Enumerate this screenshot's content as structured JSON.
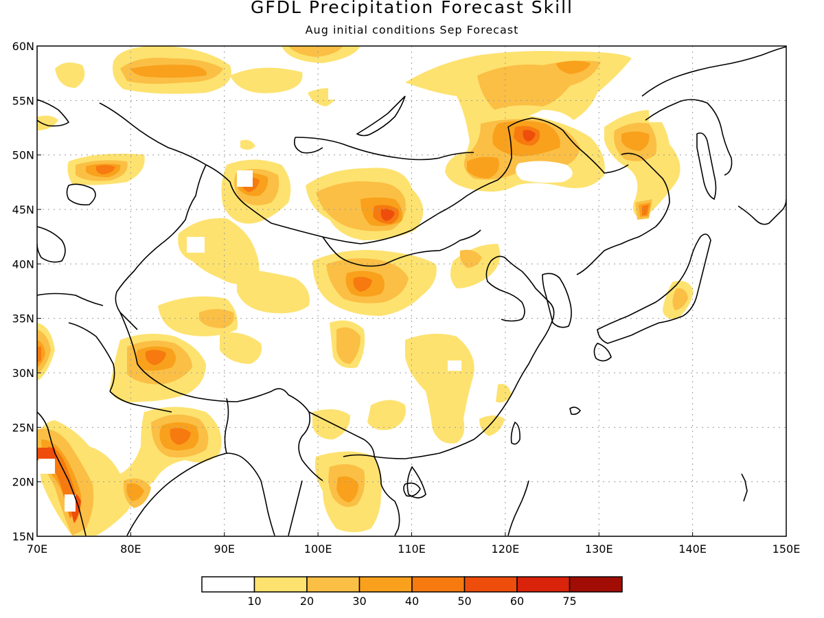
{
  "title": "GFDL Precipitation Forecast Skill",
  "subtitle": "Aug initial conditions  Sep Forecast",
  "map": {
    "lon_range": [
      70,
      150
    ],
    "lat_range": [
      15,
      60
    ],
    "x_ticks": [
      "70E",
      "80E",
      "90E",
      "100E",
      "110E",
      "120E",
      "130E",
      "140E",
      "150E"
    ],
    "y_ticks": [
      "15N",
      "20N",
      "25N",
      "30N",
      "35N",
      "40N",
      "45N",
      "50N",
      "55N",
      "60N"
    ],
    "grid": true
  },
  "colorbar": {
    "levels": [
      "10",
      "20",
      "30",
      "40",
      "50",
      "60",
      "75"
    ],
    "colors": [
      "#ffffff",
      "#fde26f",
      "#fbbf45",
      "#f9a11c",
      "#f67a0f",
      "#ee4d0c",
      "#d9230b",
      "#a10d05"
    ]
  },
  "skill_regions": [
    {
      "lon": 74,
      "lat": 58,
      "level": 1
    },
    {
      "lon": 81,
      "lat": 57.5,
      "level": 2
    },
    {
      "lon": 99,
      "lat": 60,
      "level": 2
    },
    {
      "lon": 126,
      "lat": 58,
      "level": 2
    },
    {
      "lon": 77,
      "lat": 48.5,
      "level": 3
    },
    {
      "lon": 93,
      "lat": 47,
      "level": 3
    },
    {
      "lon": 107,
      "lat": 44.5,
      "level": 4
    },
    {
      "lon": 122,
      "lat": 51.5,
      "level": 3
    },
    {
      "lon": 134,
      "lat": 51,
      "level": 2
    },
    {
      "lon": 135.5,
      "lat": 45,
      "level": 3
    },
    {
      "lon": 105,
      "lat": 38,
      "level": 3
    },
    {
      "lon": 90,
      "lat": 35,
      "level": 1
    },
    {
      "lon": 83,
      "lat": 32,
      "level": 3
    },
    {
      "lon": 104,
      "lat": 32,
      "level": 2
    },
    {
      "lon": 70,
      "lat": 32,
      "level": 3
    },
    {
      "lon": 85,
      "lat": 24,
      "level": 3
    },
    {
      "lon": 72,
      "lat": 22,
      "level": 5
    },
    {
      "lon": 74,
      "lat": 18,
      "level": 4
    },
    {
      "lon": 81.5,
      "lat": 19,
      "level": 3
    },
    {
      "lon": 103.5,
      "lat": 19,
      "level": 2
    },
    {
      "lon": 138.5,
      "lat": 36.5,
      "level": 2
    },
    {
      "lon": 115.5,
      "lat": 24.5,
      "level": 2
    },
    {
      "lon": 117,
      "lat": 41.5,
      "level": 1
    }
  ]
}
